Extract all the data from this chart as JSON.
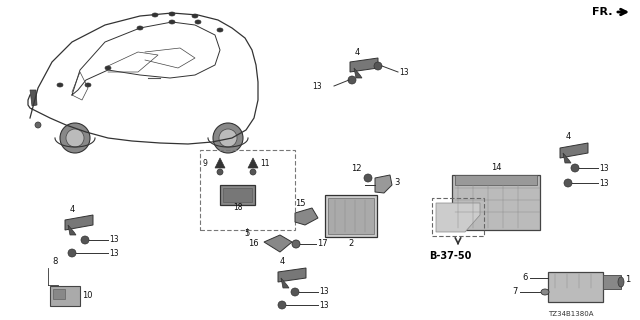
{
  "background_color": "#ffffff",
  "line_color": "#333333",
  "text_color": "#111111",
  "diagram_code": "TZ34B1380A"
}
